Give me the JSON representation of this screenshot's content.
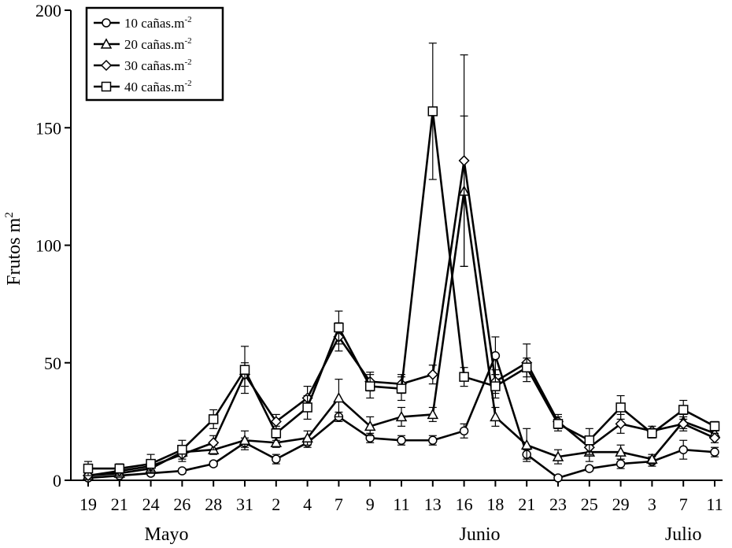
{
  "chart_data": {
    "type": "line",
    "ylabel": "Frutos m",
    "ylabel_sup": "2",
    "ylim": [
      0,
      200
    ],
    "yticks": [
      0,
      50,
      100,
      150,
      200
    ],
    "categories": [
      "19",
      "21",
      "24",
      "26",
      "28",
      "31",
      "2",
      "4",
      "7",
      "9",
      "11",
      "13",
      "16",
      "18",
      "21",
      "23",
      "25",
      "29",
      "3",
      "7",
      "11"
    ],
    "months": [
      {
        "label": "Mayo",
        "index": 2.5
      },
      {
        "label": "Junio",
        "index": 12.5
      },
      {
        "label": "Julio",
        "index": 19
      }
    ],
    "legend_position": "top-left",
    "series": [
      {
        "name": "10 cañas.m",
        "name_sup": "-2",
        "marker": "circle",
        "values": [
          1,
          2,
          3,
          4,
          7,
          16,
          9,
          16,
          27,
          18,
          17,
          17,
          21,
          53,
          11,
          1,
          5,
          7,
          8,
          13,
          12
        ],
        "errors": [
          1,
          1,
          1,
          1,
          1,
          2,
          2,
          2,
          2,
          2,
          2,
          2,
          3,
          8,
          2,
          1,
          1,
          2,
          2,
          4,
          2
        ]
      },
      {
        "name": "20 cañas.m",
        "name_sup": "-2",
        "marker": "triangle",
        "values": [
          2,
          3,
          5,
          12,
          13,
          17,
          16,
          18,
          35,
          23,
          27,
          28,
          123,
          27,
          15,
          10,
          12,
          12,
          9,
          25,
          20
        ],
        "errors": [
          1,
          1,
          2,
          2,
          2,
          4,
          2,
          3,
          8,
          4,
          4,
          3,
          32,
          4,
          7,
          3,
          4,
          3,
          2,
          3,
          2
        ]
      },
      {
        "name": "30 cañas.m",
        "name_sup": "-2",
        "marker": "diamond",
        "values": [
          2,
          4,
          6,
          11,
          16,
          45,
          25,
          35,
          61,
          42,
          41,
          45,
          136,
          42,
          50,
          25,
          14,
          24,
          21,
          24,
          18
        ],
        "errors": [
          1,
          2,
          2,
          3,
          3,
          5,
          3,
          5,
          6,
          4,
          4,
          4,
          45,
          5,
          8,
          3,
          3,
          4,
          2,
          3,
          2
        ]
      },
      {
        "name": "40 cañas.m",
        "name_sup": "-2",
        "marker": "square",
        "values": [
          5,
          5,
          7,
          13,
          26,
          47,
          20,
          31,
          65,
          40,
          39,
          157,
          44,
          40,
          48,
          24,
          17,
          31,
          20,
          30,
          23
        ],
        "errors": [
          3,
          2,
          4,
          4,
          4,
          10,
          3,
          5,
          7,
          5,
          5,
          29,
          4,
          5,
          4,
          3,
          5,
          5,
          2,
          4,
          2
        ]
      }
    ]
  }
}
